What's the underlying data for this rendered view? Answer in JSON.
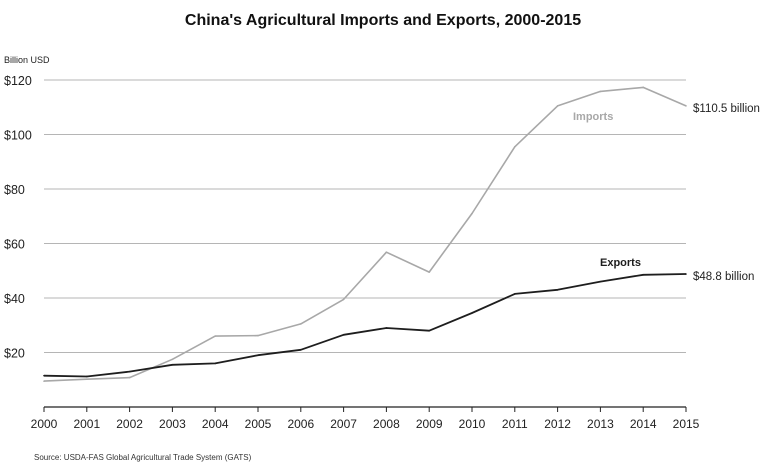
{
  "chart_data": {
    "type": "line",
    "title": "China's Agricultural Imports and Exports, 2000-2015",
    "ylabel": "Billion USD",
    "xlabel": "",
    "x": [
      "2000",
      "2001",
      "2002",
      "2003",
      "2004",
      "2005",
      "2006",
      "2007",
      "2008",
      "2009",
      "2010",
      "2011",
      "2012",
      "2013",
      "2014",
      "2015"
    ],
    "ylim": [
      0,
      120
    ],
    "yticks": [
      20,
      40,
      60,
      80,
      100,
      120
    ],
    "ytick_labels": [
      "$20",
      "$40",
      "$60",
      "$80",
      "$100",
      "$120"
    ],
    "grid": "horizontal",
    "series": [
      {
        "name": "Imports",
        "color": "#a8a8a8",
        "values": [
          9.5,
          10.2,
          10.8,
          17.5,
          26.0,
          26.2,
          30.5,
          39.5,
          56.8,
          49.5,
          71.0,
          95.5,
          110.5,
          115.8,
          117.3,
          110.5
        ],
        "end_label": "$110.5 billion"
      },
      {
        "name": "Exports",
        "color": "#1e1e1e",
        "values": [
          11.5,
          11.2,
          13.0,
          15.5,
          16.0,
          19.0,
          21.0,
          26.5,
          29.0,
          28.0,
          34.5,
          41.5,
          43.0,
          46.0,
          48.5,
          48.8
        ],
        "end_label": "$48.8 billion"
      }
    ],
    "source": "Source:  USDA-FAS Global Agricultural Trade System (GATS)"
  }
}
